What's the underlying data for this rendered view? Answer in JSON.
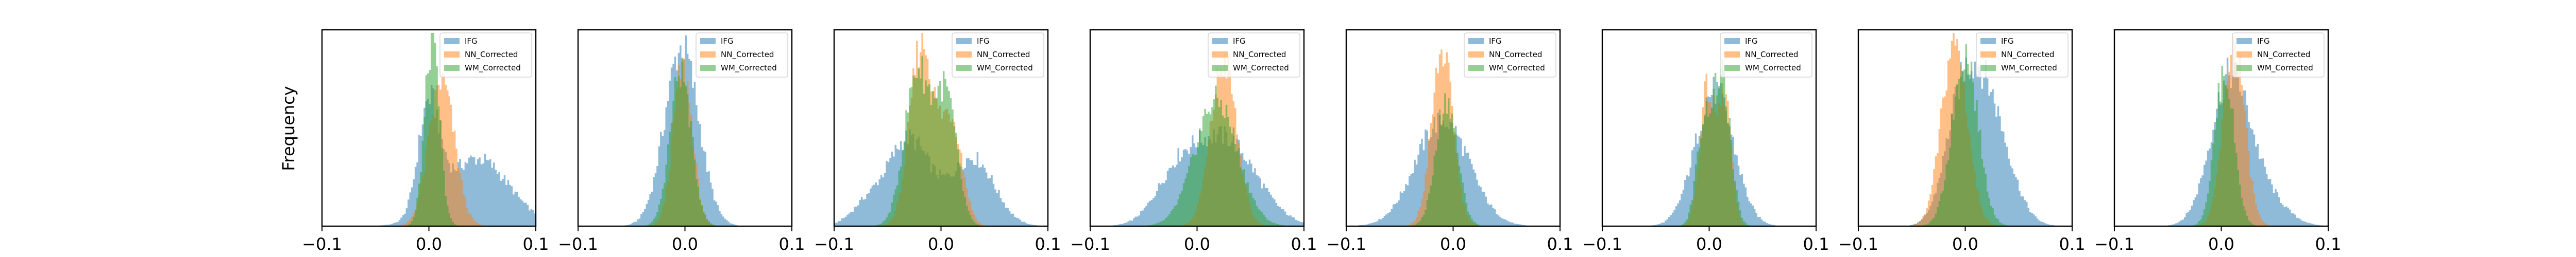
{
  "ylabel": "Frequency",
  "colors": {
    "IFG": "#1f77b4",
    "NN_Corrected": "#ff7f0e",
    "WM_Corrected": "#2ca02c"
  },
  "chart_data": [
    {
      "type": "area",
      "xlim": [
        -0.1,
        0.1
      ],
      "xticks": [
        "−0.1",
        "0.0",
        "0.1"
      ],
      "legend_position": "top-right",
      "series": [
        {
          "name": "IFG",
          "components": [
            [
              0.0,
              0.01,
              0.55
            ],
            [
              0.045,
              0.03,
              0.35
            ]
          ]
        },
        {
          "name": "NN_Corrected",
          "components": [
            [
              0.012,
              0.012,
              0.75
            ]
          ]
        },
        {
          "name": "WM_Corrected",
          "components": [
            [
              0.003,
              0.007,
              0.95
            ]
          ]
        }
      ]
    },
    {
      "type": "area",
      "xlim": [
        -0.1,
        0.1
      ],
      "xticks": [
        "−0.1",
        "0.0",
        "0.1"
      ],
      "legend_position": "top-right",
      "series": [
        {
          "name": "IFG",
          "components": [
            [
              -0.003,
              0.016,
              0.92
            ]
          ]
        },
        {
          "name": "NN_Corrected",
          "components": [
            [
              -0.002,
              0.009,
              0.82
            ]
          ]
        },
        {
          "name": "WM_Corrected",
          "components": [
            [
              -0.004,
              0.01,
              0.8
            ]
          ]
        }
      ]
    },
    {
      "type": "area",
      "xlim": [
        -0.1,
        0.1
      ],
      "xticks": [
        "−0.1",
        "0.0",
        "0.1"
      ],
      "legend_position": "top-right",
      "series": [
        {
          "name": "IFG",
          "components": [
            [
              -0.03,
              0.02,
              0.45
            ],
            [
              0.03,
              0.02,
              0.35
            ],
            [
              -0.07,
              0.015,
              0.1
            ]
          ]
        },
        {
          "name": "NN_Corrected",
          "components": [
            [
              -0.018,
              0.011,
              0.95
            ],
            [
              0.01,
              0.01,
              0.55
            ]
          ]
        },
        {
          "name": "WM_Corrected",
          "components": [
            [
              -0.022,
              0.012,
              0.8
            ],
            [
              0.005,
              0.01,
              0.65
            ]
          ]
        }
      ]
    },
    {
      "type": "area",
      "xlim": [
        -0.1,
        0.1
      ],
      "xticks": [
        "−0.1",
        "0.0",
        "0.1"
      ],
      "legend_position": "top-right",
      "series": [
        {
          "name": "IFG",
          "components": [
            [
              0.025,
              0.03,
              0.45
            ],
            [
              -0.02,
              0.02,
              0.2
            ]
          ]
        },
        {
          "name": "NN_Corrected",
          "components": [
            [
              0.025,
              0.012,
              0.85
            ]
          ]
        },
        {
          "name": "WM_Corrected",
          "components": [
            [
              0.018,
              0.02,
              0.65
            ]
          ]
        }
      ]
    },
    {
      "type": "area",
      "xlim": [
        -0.1,
        0.1
      ],
      "xticks": [
        "−0.1",
        "0.0",
        "0.1"
      ],
      "legend_position": "top-right",
      "series": [
        {
          "name": "IFG",
          "components": [
            [
              -0.01,
              0.025,
              0.55
            ]
          ]
        },
        {
          "name": "NN_Corrected",
          "components": [
            [
              -0.01,
              0.01,
              0.9
            ]
          ]
        },
        {
          "name": "WM_Corrected",
          "components": [
            [
              -0.006,
              0.01,
              0.65
            ]
          ]
        }
      ]
    },
    {
      "type": "area",
      "xlim": [
        -0.1,
        0.1
      ],
      "xticks": [
        "−0.1",
        "0.0",
        "0.1"
      ],
      "legend_position": "top-right",
      "series": [
        {
          "name": "IFG",
          "components": [
            [
              0.005,
              0.018,
              0.7
            ]
          ]
        },
        {
          "name": "NN_Corrected",
          "components": [
            [
              -0.002,
              0.007,
              0.7
            ],
            [
              0.015,
              0.006,
              0.65
            ]
          ]
        },
        {
          "name": "WM_Corrected",
          "components": [
            [
              0.012,
              0.008,
              0.75
            ],
            [
              -0.005,
              0.007,
              0.5
            ]
          ]
        }
      ]
    },
    {
      "type": "area",
      "xlim": [
        -0.1,
        0.1
      ],
      "xticks": [
        "−0.1",
        "0.0",
        "0.1"
      ],
      "legend_position": "top-right",
      "series": [
        {
          "name": "IFG",
          "components": [
            [
              0.02,
              0.02,
              0.65
            ],
            [
              -0.005,
              0.015,
              0.45
            ]
          ]
        },
        {
          "name": "NN_Corrected",
          "components": [
            [
              -0.01,
              0.012,
              0.95
            ]
          ]
        },
        {
          "name": "WM_Corrected",
          "components": [
            [
              0.0,
              0.012,
              0.9
            ]
          ]
        }
      ]
    },
    {
      "type": "area",
      "xlim": [
        -0.1,
        0.1
      ],
      "xticks": [
        "−0.1",
        "0.0",
        "0.1"
      ],
      "legend_position": "top-right",
      "series": [
        {
          "name": "IFG",
          "components": [
            [
              0.008,
              0.018,
              0.75
            ],
            [
              0.04,
              0.02,
              0.15
            ]
          ]
        },
        {
          "name": "NN_Corrected",
          "components": [
            [
              0.012,
              0.01,
              0.95
            ]
          ]
        },
        {
          "name": "WM_Corrected",
          "components": [
            [
              0.003,
              0.009,
              0.8
            ]
          ]
        }
      ]
    }
  ]
}
